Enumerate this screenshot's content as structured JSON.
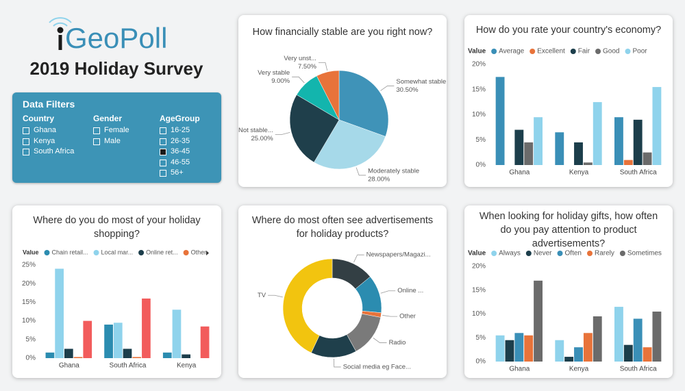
{
  "header": {
    "logo": "GeoPoll",
    "title": "2019 Holiday Survey"
  },
  "filters": {
    "title": "Data Filters",
    "groups": [
      {
        "name": "Country",
        "items": [
          {
            "label": "Ghana",
            "checked": false
          },
          {
            "label": "Kenya",
            "checked": false
          },
          {
            "label": "South Africa",
            "checked": false
          }
        ]
      },
      {
        "name": "Gender",
        "items": [
          {
            "label": "Female",
            "checked": false
          },
          {
            "label": "Male",
            "checked": false
          }
        ]
      },
      {
        "name": "AgeGroup",
        "items": [
          {
            "label": "16-25",
            "checked": false
          },
          {
            "label": "26-35",
            "checked": false
          },
          {
            "label": "36-45",
            "checked": true
          },
          {
            "label": "46-55",
            "checked": false
          },
          {
            "label": "56+",
            "checked": false
          }
        ]
      }
    ]
  },
  "chart_data": [
    {
      "type": "pie",
      "title": "How financially stable are you right now?",
      "categories": [
        "Somewhat stable",
        "Moderately stable",
        "Not stable...",
        "Very stable",
        "Very unst..."
      ],
      "values": [
        30.5,
        28,
        25,
        9,
        7.5
      ],
      "value_labels": [
        "30.50%",
        "28.00%",
        "25.00%",
        "9.00%",
        "7.50%"
      ],
      "colors": [
        "#3f93b8",
        "#a6d9e9",
        "#1f3f4b",
        "#13b5ad",
        "#e8733a"
      ]
    },
    {
      "type": "bar",
      "title": "How do you rate your country's economy?",
      "legend_title": "Value",
      "categories": [
        "Ghana",
        "Kenya",
        "South Africa"
      ],
      "series": [
        {
          "name": "Average",
          "color": "#3a8fb7",
          "values": [
            17.5,
            6.5,
            9.5
          ]
        },
        {
          "name": "Excellent",
          "color": "#e8733a",
          "values": [
            0,
            0,
            1
          ]
        },
        {
          "name": "Fair",
          "color": "#1c3e4b",
          "values": [
            7,
            4.5,
            9
          ]
        },
        {
          "name": "Good",
          "color": "#6b6b6b",
          "values": [
            4.5,
            0.5,
            2.5
          ]
        },
        {
          "name": "Poor",
          "color": "#8fd3ec",
          "values": [
            9.5,
            12.5,
            15.5
          ]
        }
      ],
      "ylim": [
        0,
        20
      ],
      "yticks": [
        {
          "value": 0,
          "label": "0%"
        },
        {
          "value": 5,
          "label": "5%"
        },
        {
          "value": 10,
          "label": "10%"
        },
        {
          "value": 15,
          "label": "15%"
        },
        {
          "value": 20,
          "label": "20%"
        }
      ]
    },
    {
      "type": "bar",
      "title": "Where do you do most of your holiday shopping?",
      "legend_title": "Value",
      "categories": [
        "Ghana",
        "South Africa",
        "Kenya"
      ],
      "series": [
        {
          "name": "Chain retail...",
          "color": "#2b8cb0",
          "values": [
            1.5,
            9,
            1.5
          ]
        },
        {
          "name": "Local mar...",
          "color": "#8fd3ec",
          "values": [
            24,
            9.5,
            13
          ]
        },
        {
          "name": "Online ret...",
          "color": "#1c3e4b",
          "values": [
            2.5,
            2.5,
            1
          ]
        },
        {
          "name": "Other",
          "color": "#e8733a",
          "values": [
            0.3,
            0.3,
            0
          ]
        },
        {
          "name": null,
          "color": "#f25c5c",
          "values": [
            10,
            16,
            8.5
          ]
        }
      ],
      "ylim": [
        0,
        25
      ],
      "yticks": [
        {
          "value": 0,
          "label": "0%"
        },
        {
          "value": 5,
          "label": "5%"
        },
        {
          "value": 10,
          "label": "10%"
        },
        {
          "value": 15,
          "label": "15%"
        },
        {
          "value": 20,
          "label": "20%"
        },
        {
          "value": 25,
          "label": "25%"
        }
      ]
    },
    {
      "type": "donut",
      "title": "Where do most often see advertisements for holiday products?",
      "categories": [
        "Newspapers/Magazi...",
        "Online ...",
        "Other",
        "Radio",
        "Social media eg Face...",
        "TV"
      ],
      "values": [
        14,
        12.5,
        1.5,
        14,
        15,
        43
      ],
      "colors": [
        "#333f44",
        "#2b8cb0",
        "#e8733a",
        "#7a7a7a",
        "#1f3f4b",
        "#f2c40f"
      ]
    },
    {
      "type": "bar",
      "title": "When looking for holiday gifts, how often do you pay attention to product advertisements?",
      "legend_title": "Value",
      "categories": [
        "Ghana",
        "Kenya",
        "South Africa"
      ],
      "series": [
        {
          "name": "Always",
          "color": "#8fd3ec",
          "values": [
            5.5,
            4.5,
            11.5
          ]
        },
        {
          "name": "Never",
          "color": "#1c3e4b",
          "values": [
            4.5,
            1,
            3.5
          ]
        },
        {
          "name": "Often",
          "color": "#3a8fb7",
          "values": [
            6,
            3,
            9
          ]
        },
        {
          "name": "Rarely",
          "color": "#e8733a",
          "values": [
            5.5,
            6,
            3
          ]
        },
        {
          "name": "Sometimes",
          "color": "#6b6b6b",
          "values": [
            17,
            9.5,
            10.5
          ]
        }
      ],
      "ylim": [
        0,
        20
      ],
      "yticks": [
        {
          "value": 0,
          "label": "0%"
        },
        {
          "value": 5,
          "label": "5%"
        },
        {
          "value": 10,
          "label": "10%"
        },
        {
          "value": 15,
          "label": "15%"
        },
        {
          "value": 20,
          "label": "20%"
        }
      ]
    }
  ]
}
